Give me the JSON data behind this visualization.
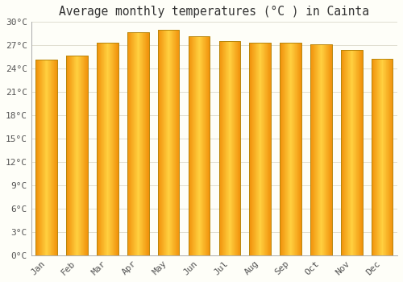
{
  "title": "Average monthly temperatures (°C ) in Cainta",
  "months": [
    "Jan",
    "Feb",
    "Mar",
    "Apr",
    "May",
    "Jun",
    "Jul",
    "Aug",
    "Sep",
    "Oct",
    "Nov",
    "Dec"
  ],
  "temperatures": [
    25.2,
    25.7,
    27.3,
    28.7,
    29.0,
    28.2,
    27.5,
    27.3,
    27.3,
    27.1,
    26.4,
    25.3
  ],
  "bar_color_center": "#FFD040",
  "bar_color_edge": "#F0900A",
  "bar_outline_color": "#B8860B",
  "background_color": "#FEFEF8",
  "grid_color": "#E0DDD0",
  "ytick_step": 3,
  "ymin": 0,
  "ymax": 30,
  "title_fontsize": 10.5,
  "tick_fontsize": 8,
  "title_color": "#333333",
  "tick_color": "#555555",
  "bar_width": 0.7
}
